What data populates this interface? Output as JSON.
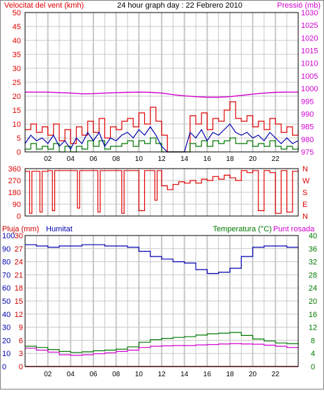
{
  "colors": {
    "wind": "#e00000",
    "pressure": "#d000d0",
    "humidity": "#0000b0",
    "temperature": "#007800",
    "dewpoint": "#d000d0",
    "rain": "#d00000",
    "grid": "#c8c8c8",
    "frame": "#000000",
    "panel_bg": "#ffffff"
  },
  "chart_data": [
    {
      "type": "line",
      "title": "24 hour graph day : 22 Febrero 2010",
      "left_axis_label": "Velocitat del vent (kmh)",
      "right_axis_label": "Pressió (mb)",
      "x_ticks": [
        "02",
        "04",
        "06",
        "08",
        "10",
        "12",
        "14",
        "16",
        "18",
        "20",
        "22"
      ],
      "y_left_ticks": [
        0,
        5,
        10,
        15,
        20,
        25,
        30,
        35,
        40,
        45,
        50
      ],
      "y_right_ticks": [
        975,
        980,
        985,
        990,
        995,
        1000,
        1005,
        1010,
        1015,
        1020,
        1025,
        1030
      ],
      "xlim": [
        0,
        24
      ],
      "ylim_left": [
        0,
        50
      ],
      "ylim_right": [
        975,
        1030
      ],
      "grid": true,
      "series": {
        "pressure": {
          "x": [
            0,
            1,
            2,
            3,
            4,
            5,
            6,
            7,
            8,
            9,
            10,
            11,
            12,
            13,
            14,
            15,
            16,
            17,
            18,
            19,
            20,
            21,
            22,
            23,
            24
          ],
          "y": [
            998.6,
            998.6,
            998.6,
            998.4,
            998.2,
            997.9,
            998.0,
            998.2,
            998.4,
            998.5,
            998.6,
            998.5,
            998.2,
            997.6,
            997.1,
            996.8,
            996.6,
            996.6,
            996.8,
            997.3,
            997.8,
            998.2,
            998.5,
            998.6,
            998.6
          ]
        },
        "wind_gust": {
          "x": [
            0,
            0.5,
            1,
            1.5,
            2,
            2.5,
            3,
            3.5,
            4,
            4.5,
            5,
            5.5,
            6,
            6.5,
            7,
            7.5,
            8,
            8.5,
            9,
            9.5,
            10,
            10.5,
            11,
            11.5,
            12,
            12.5,
            13,
            13.5,
            14,
            14.5,
            15,
            15.5,
            16,
            16.5,
            17,
            17.5,
            18,
            18.5,
            19,
            19.5,
            20,
            20.5,
            21,
            21.5,
            22,
            22.5,
            23,
            23.5,
            24
          ],
          "y": [
            8,
            10,
            7,
            9,
            6,
            10,
            4,
            8,
            3,
            9,
            6,
            11,
            7,
            12,
            5,
            9,
            8,
            11,
            12,
            9,
            14,
            10,
            16,
            11,
            6,
            0,
            0,
            0,
            0,
            13,
            10,
            14,
            8,
            12,
            11,
            15,
            18,
            12,
            11,
            13,
            9,
            11,
            8,
            12,
            10,
            7,
            9,
            6,
            8
          ]
        },
        "wind_avg": {
          "x": [
            0,
            0.5,
            1,
            1.5,
            2,
            2.5,
            3,
            3.5,
            4,
            4.5,
            5,
            5.5,
            6,
            6.5,
            7,
            7.5,
            8,
            8.5,
            9,
            9.5,
            10,
            10.5,
            11,
            11.5,
            12,
            12.5,
            13,
            13.5,
            14,
            14.5,
            15,
            15.5,
            16,
            16.5,
            17,
            17.5,
            18,
            18.5,
            19,
            19.5,
            20,
            20.5,
            21,
            21.5,
            22,
            22.5,
            23,
            23.5,
            24
          ],
          "y": [
            3,
            6,
            4,
            5,
            3,
            6,
            2,
            4,
            1,
            5,
            3,
            7,
            4,
            7,
            2,
            5,
            4,
            6,
            7,
            5,
            8,
            6,
            9,
            6,
            2,
            0,
            0,
            0,
            0,
            7,
            5,
            8,
            4,
            7,
            6,
            8,
            10,
            7,
            6,
            7,
            5,
            6,
            4,
            7,
            5,
            3,
            5,
            3,
            4
          ]
        },
        "wind_min": {
          "x": [
            0,
            0.5,
            1,
            1.5,
            2,
            2.5,
            3,
            3.5,
            4,
            4.5,
            5,
            5.5,
            6,
            6.5,
            7,
            7.5,
            8,
            8.5,
            9,
            9.5,
            10,
            10.5,
            11,
            11.5,
            12,
            12.5,
            13,
            13.5,
            14,
            14.5,
            15,
            15.5,
            16,
            16.5,
            17,
            17.5,
            18,
            18.5,
            19,
            19.5,
            20,
            20.5,
            21,
            21.5,
            22,
            22.5,
            23,
            23.5,
            24
          ],
          "y": [
            1,
            3,
            1,
            2,
            1,
            3,
            0,
            2,
            0,
            2,
            1,
            4,
            2,
            4,
            1,
            2,
            2,
            3,
            4,
            2,
            4,
            3,
            5,
            3,
            0,
            0,
            0,
            0,
            0,
            3,
            2,
            4,
            2,
            4,
            3,
            4,
            5,
            3,
            3,
            4,
            2,
            3,
            2,
            4,
            2,
            1,
            2,
            1,
            2
          ]
        }
      }
    },
    {
      "type": "line",
      "title": "",
      "left_axis_label": "",
      "right_axis_label": "",
      "y_left_ticks": [
        0,
        90,
        180,
        270,
        360
      ],
      "y_right_labels": [
        "N",
        "W",
        "S",
        "E",
        "N"
      ],
      "xlim": [
        0,
        24
      ],
      "ylim": [
        0,
        360
      ],
      "grid": true,
      "series": {
        "wind_direction": {
          "x": [
            0,
            0.4,
            0.6,
            1,
            1.3,
            1.5,
            2,
            2.4,
            2.6,
            3,
            4,
            4.6,
            4.8,
            5.2,
            6,
            6.4,
            6.6,
            7,
            8,
            8.5,
            8.7,
            9,
            9.8,
            10,
            10.5,
            11,
            11.4,
            11.6,
            12,
            12.5,
            13,
            13.5,
            14,
            14.5,
            15,
            15.5,
            16,
            16.5,
            17,
            17.5,
            18,
            18.5,
            19,
            19.5,
            20,
            20.5,
            21,
            21.5,
            22,
            22.5,
            23,
            23.5,
            24
          ],
          "y": [
            340,
            20,
            340,
            340,
            30,
            340,
            345,
            40,
            345,
            345,
            345,
            60,
            345,
            345,
            345,
            30,
            345,
            345,
            345,
            20,
            345,
            345,
            345,
            40,
            345,
            345,
            120,
            345,
            230,
            200,
            240,
            260,
            250,
            270,
            250,
            280,
            270,
            300,
            280,
            310,
            290,
            270,
            345,
            330,
            345,
            40,
            345,
            330,
            20,
            345,
            30,
            340,
            345
          ]
        }
      }
    },
    {
      "type": "line",
      "title": "",
      "labels": {
        "rain": "Pluja (mm)",
        "humidity": "Humitat",
        "temperature": "Temperatura (°C)",
        "dewpoint": "Punt rosada"
      },
      "y_left_rain_ticks": [
        0,
        3,
        6,
        9,
        12,
        15,
        18,
        21,
        24,
        27,
        30
      ],
      "y_left_humidity_ticks": [
        0,
        10,
        20,
        30,
        40,
        50,
        60,
        70,
        80,
        90,
        100
      ],
      "y_right_ticks": [
        0,
        4,
        8,
        12,
        16,
        20,
        24,
        28,
        32,
        36,
        40
      ],
      "x_ticks": [
        "02",
        "04",
        "06",
        "08",
        "10",
        "12",
        "14",
        "16",
        "18",
        "20",
        "22"
      ],
      "xlim": [
        0,
        24
      ],
      "ylim_rain": [
        0,
        30
      ],
      "ylim_humidity": [
        0,
        100
      ],
      "ylim_temp": [
        0,
        40
      ],
      "grid": true,
      "series": {
        "humidity": {
          "x": [
            0,
            1,
            2,
            3,
            4,
            5,
            6,
            7,
            8,
            9,
            10,
            11,
            12,
            13,
            14,
            15,
            16,
            17,
            18,
            19,
            20,
            21,
            22,
            23,
            24
          ],
          "y": [
            93,
            92,
            91,
            92,
            92,
            93,
            93,
            92,
            92,
            91,
            88,
            84,
            82,
            80,
            79,
            74,
            71,
            72,
            75,
            84,
            91,
            92,
            92,
            91,
            91
          ]
        },
        "temperature": {
          "x": [
            0,
            1,
            2,
            3,
            4,
            5,
            6,
            7,
            8,
            9,
            10,
            11,
            12,
            13,
            14,
            15,
            16,
            17,
            18,
            19,
            20,
            21,
            22,
            23,
            24
          ],
          "y": [
            6.2,
            5.8,
            5.2,
            4.6,
            4.3,
            4.5,
            4.8,
            5.0,
            5.3,
            6.0,
            7.4,
            8.2,
            8.6,
            8.9,
            9.1,
            9.6,
            10.0,
            10.2,
            10.4,
            9.5,
            8.4,
            7.8,
            7.2,
            7.0,
            6.6
          ]
        },
        "dewpoint": {
          "x": [
            0,
            1,
            2,
            3,
            4,
            5,
            6,
            7,
            8,
            9,
            10,
            11,
            12,
            13,
            14,
            15,
            16,
            17,
            18,
            19,
            20,
            21,
            22,
            23,
            24
          ],
          "y": [
            5.6,
            5.0,
            4.4,
            3.6,
            3.4,
            3.6,
            3.9,
            4.2,
            4.6,
            5.0,
            5.8,
            6.2,
            6.3,
            6.4,
            6.4,
            6.6,
            6.7,
            6.9,
            7.0,
            6.9,
            6.8,
            6.5,
            6.2,
            5.8,
            5.6
          ]
        },
        "rain": {
          "x": [
            0,
            24
          ],
          "y": [
            0,
            0
          ]
        }
      }
    }
  ]
}
